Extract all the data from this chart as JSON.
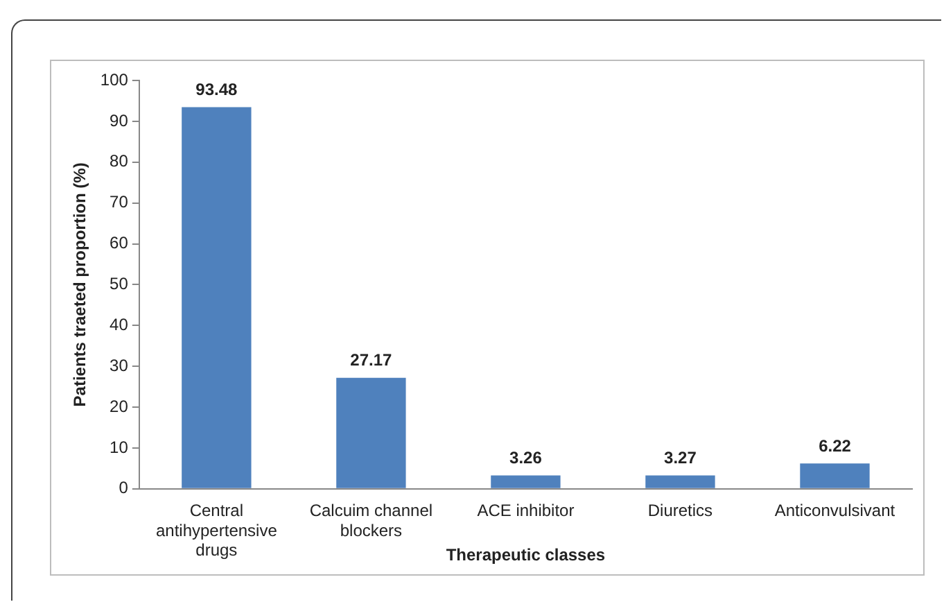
{
  "chart_data": {
    "type": "bar",
    "xlabel": "Therapeutic classes",
    "ylabel": "Patients traeted proportion (%)",
    "categories": [
      "Central antihypertensive drugs",
      "Calcuim channel blockers",
      "ACE inhibitor",
      "Diuretics",
      "Anticonvulsivant"
    ],
    "values": [
      93.48,
      27.17,
      3.26,
      3.27,
      6.22
    ],
    "color": "#4f81bd",
    "ylim": [
      0,
      100
    ],
    "yticks": [
      0,
      10,
      20,
      30,
      40,
      50,
      60,
      70,
      80,
      90,
      100
    ],
    "grid": false,
    "legend": false,
    "data_labels": true
  }
}
